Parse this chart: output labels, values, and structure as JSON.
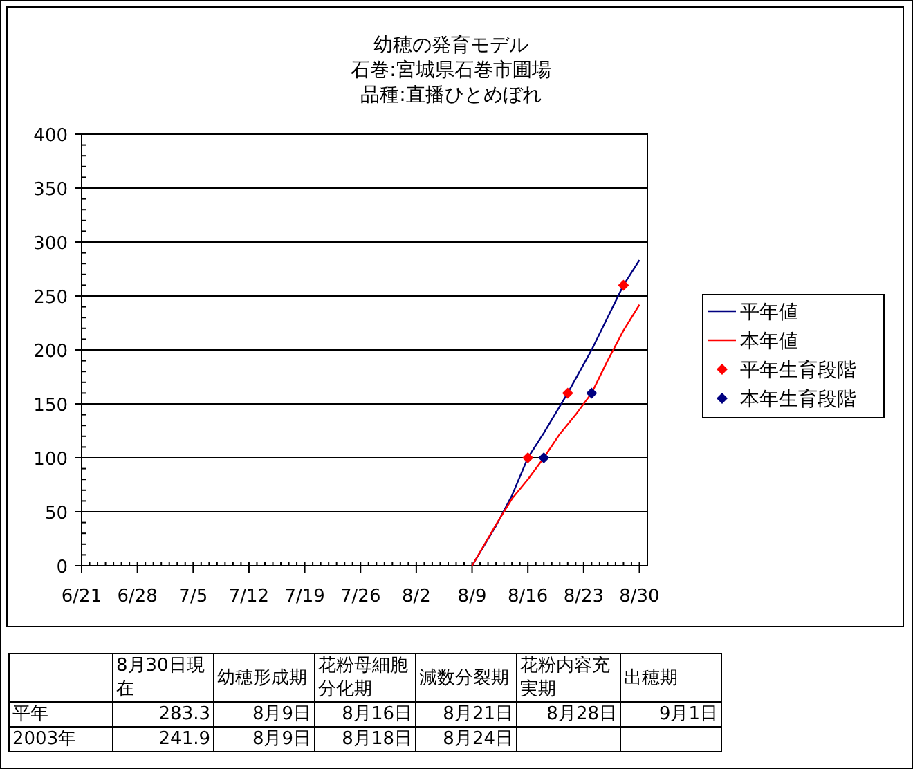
{
  "chart_data": {
    "type": "line",
    "title": "幼穂の発育モデル",
    "subtitle": "石巻:宮城県石巻市圃場",
    "xlim": [
      "--06-21",
      "--08-31"
    ],
    "xticks": [
      {
        "value": "--06-21",
        "label": "6/21"
      },
      {
        "value": "--06-28",
        "label": "6/28"
      },
      {
        "value": "--07-05",
        "label": "7/5"
      },
      {
        "value": "--07-12",
        "label": "7/12"
      },
      {
        "value": "--07-19",
        "label": "7/19"
      },
      {
        "value": "--07-26",
        "label": "7/26"
      },
      {
        "value": "--08-02",
        "label": "8/2"
      },
      {
        "value": "--08-09",
        "label": "8/9"
      },
      {
        "value": "--08-16",
        "label": "8/16"
      },
      {
        "value": "--08-23",
        "label": "8/23"
      },
      {
        "value": "--08-30",
        "label": "8/30"
      }
    ],
    "ylim": [
      0,
      400
    ],
    "yticks": [
      0,
      50,
      100,
      150,
      200,
      250,
      300,
      350,
      400
    ],
    "grid": "y",
    "legend": "right",
    "line_style": "solid",
    "series": [
      {
        "name": "平年値",
        "color": "#000080",
        "x": [
          "--08-09",
          "--08-12",
          "--08-14",
          "--08-16",
          "--08-18",
          "--08-21",
          "--08-24",
          "--08-26",
          "--08-28",
          "--08-30"
        ],
        "values": [
          0,
          37,
          65,
          100,
          123,
          160,
          200,
          230,
          260,
          283.3
        ]
      },
      {
        "name": "本年値",
        "color": "#ff0000",
        "x": [
          "--08-09",
          "--08-12",
          "--08-14",
          "--08-16",
          "--08-18",
          "--08-20",
          "--08-22",
          "--08-24",
          "--08-26",
          "--08-28",
          "--08-30"
        ],
        "values": [
          0,
          38,
          62,
          80,
          100,
          122,
          140,
          160,
          190,
          218,
          241.9
        ]
      },
      {
        "name": "平年生育段階",
        "type": "scatter",
        "marker": "diamond",
        "color": "#ff0000",
        "x": [
          "--08-16",
          "--08-21",
          "--08-28"
        ],
        "values": [
          100,
          160,
          260
        ]
      },
      {
        "name": "本年生育段階",
        "type": "scatter",
        "marker": "diamond",
        "color": "#000080",
        "x": [
          "--08-18",
          "--08-24"
        ],
        "values": [
          100,
          160
        ]
      }
    ],
    "annotations": [
      "品種:直播ひとめぼれ",
      "8月30日現在",
      "幼穂形成期",
      "花粉母細胞分化期",
      "減数分裂期",
      "花粉内容充実期",
      "出穂期",
      "平年",
      "283.3",
      "8月9日",
      "8月16日",
      "8月21日",
      "8月28日",
      "9月1日",
      "2003年",
      "241.9",
      "8月9日",
      "8月18日",
      "8月24日"
    ]
  }
}
